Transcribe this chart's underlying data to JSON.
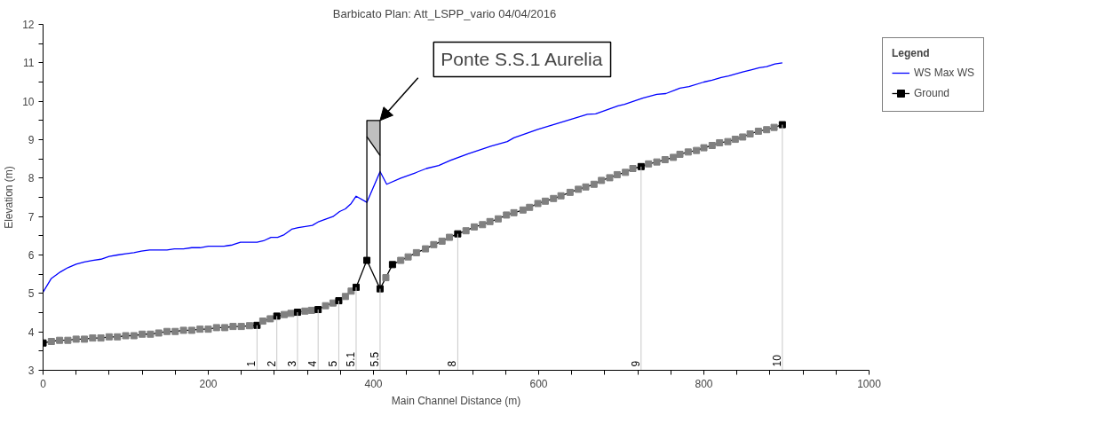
{
  "chart_data": {
    "type": "line",
    "title": "Barbicato      Plan: Att_LSPP_vario   04/04/2016",
    "xlabel": "Main Channel Distance (m)",
    "ylabel": "Elevation (m)",
    "legend_title": "Legend",
    "legend": "right",
    "grid": false,
    "xlim": [
      0,
      1000
    ],
    "ylim": [
      3,
      12
    ],
    "xticks": [
      0,
      {
        "value": 40,
        "label": null
      },
      {
        "value": 80,
        "label": null
      },
      {
        "value": 120,
        "label": null
      },
      {
        "value": 160,
        "label": null
      },
      200,
      {
        "value": 240,
        "label": null
      },
      {
        "value": 280,
        "label": null
      },
      {
        "value": 320,
        "label": null
      },
      {
        "value": 360,
        "label": null
      },
      400,
      {
        "value": 440,
        "label": null
      },
      {
        "value": 480,
        "label": null
      },
      {
        "value": 520,
        "label": null
      },
      {
        "value": 560,
        "label": null
      },
      600,
      {
        "value": 640,
        "label": null
      },
      {
        "value": 680,
        "label": null
      },
      {
        "value": 720,
        "label": null
      },
      {
        "value": 760,
        "label": null
      },
      800,
      {
        "value": 840,
        "label": null
      },
      {
        "value": 880,
        "label": null
      },
      {
        "value": 920,
        "label": null
      },
      {
        "value": 960,
        "label": null
      },
      1000
    ],
    "yticks": [
      3,
      {
        "value": 3.5,
        "label": null
      },
      4,
      {
        "value": 4.5,
        "label": null
      },
      5,
      {
        "value": 5.5,
        "label": null
      },
      6,
      {
        "value": 6.5,
        "label": null
      },
      7,
      {
        "value": 7.5,
        "label": null
      },
      8,
      {
        "value": 8.5,
        "label": null
      },
      9,
      {
        "value": 9.5,
        "label": null
      },
      10,
      {
        "value": 10.5,
        "label": null
      },
      11,
      {
        "value": 11.5,
        "label": null
      },
      12
    ],
    "series": [
      {
        "name": "WS Max WS",
        "color": "#0000ff",
        "marker": "none",
        "x": [
          0,
          10,
          21,
          30,
          40,
          50,
          60,
          70,
          80,
          90,
          100,
          110,
          119,
          129,
          150,
          159,
          170,
          180,
          190,
          200,
          219,
          229,
          239,
          259,
          267,
          276,
          284,
          292,
          301,
          309,
          326,
          334,
          342,
          351,
          359,
          366,
          373,
          379,
          392,
          408,
          416,
          433,
          451,
          464,
          479,
          493,
          514,
          542,
          562,
          570,
          599,
          630,
          659,
          669,
          696,
          704,
          726,
          743,
          754,
          771,
          782,
          800,
          810,
          821,
          830,
          847,
          858,
          867,
          876,
          886,
          895
        ],
        "values": [
          5.03,
          5.39,
          5.56,
          5.67,
          5.76,
          5.82,
          5.86,
          5.89,
          5.96,
          6.0,
          6.03,
          6.06,
          6.1,
          6.13,
          6.13,
          6.16,
          6.16,
          6.19,
          6.19,
          6.23,
          6.23,
          6.26,
          6.33,
          6.33,
          6.37,
          6.46,
          6.46,
          6.53,
          6.67,
          6.71,
          6.77,
          6.87,
          6.93,
          7.0,
          7.13,
          7.2,
          7.34,
          7.53,
          7.37,
          8.17,
          7.84,
          8.0,
          8.14,
          8.25,
          8.33,
          8.46,
          8.63,
          8.83,
          8.95,
          9.05,
          9.27,
          9.47,
          9.66,
          9.67,
          9.88,
          9.92,
          10.08,
          10.18,
          10.2,
          10.34,
          10.38,
          10.5,
          10.55,
          10.62,
          10.66,
          10.76,
          10.82,
          10.87,
          10.9,
          10.97,
          11.0
        ]
      },
      {
        "name": "Ground",
        "color": "#000000",
        "marker": "square",
        "x": [
          0,
          10,
          20,
          30,
          40,
          50,
          60,
          70,
          80,
          90,
          100,
          110,
          120,
          130,
          140,
          150,
          160,
          170,
          180,
          190,
          200,
          210,
          220,
          230,
          240,
          250,
          259,
          266,
          275,
          283,
          292,
          300,
          308,
          317,
          325,
          333,
          342,
          351,
          358,
          366,
          373,
          379,
          392,
          408,
          415,
          423,
          433,
          442,
          452,
          463,
          473,
          483,
          492,
          502,
          512,
          522,
          532,
          541,
          551,
          561,
          570,
          581,
          589,
          599,
          608,
          618,
          627,
          638,
          648,
          657,
          667,
          676,
          686,
          695,
          705,
          714,
          724,
          733,
          743,
          753,
          763,
          771,
          781,
          791,
          800,
          810,
          819,
          829,
          838,
          847,
          856,
          866,
          876,
          885,
          895
        ],
        "values": [
          3.71,
          3.75,
          3.78,
          3.78,
          3.81,
          3.81,
          3.84,
          3.84,
          3.87,
          3.87,
          3.9,
          3.9,
          3.94,
          3.94,
          3.97,
          4.01,
          4.01,
          4.04,
          4.04,
          4.07,
          4.07,
          4.11,
          4.11,
          4.14,
          4.14,
          4.16,
          4.17,
          4.28,
          4.34,
          4.41,
          4.45,
          4.48,
          4.51,
          4.54,
          4.56,
          4.58,
          4.68,
          4.75,
          4.81,
          4.92,
          5.06,
          5.16,
          5.86,
          5.12,
          5.41,
          5.75,
          5.86,
          5.95,
          6.06,
          6.16,
          6.27,
          6.36,
          6.46,
          6.55,
          6.63,
          6.73,
          6.79,
          6.87,
          6.94,
          7.04,
          7.1,
          7.17,
          7.24,
          7.34,
          7.4,
          7.47,
          7.54,
          7.63,
          7.71,
          7.77,
          7.84,
          7.94,
          8.01,
          8.09,
          8.15,
          8.25,
          8.3,
          8.37,
          8.42,
          8.48,
          8.54,
          8.62,
          8.68,
          8.72,
          8.79,
          8.85,
          8.92,
          8.95,
          9.01,
          9.07,
          9.15,
          9.22,
          9.26,
          9.32,
          9.39
        ],
        "colors": [
          "#000000",
          "#808080",
          "#808080",
          "#808080",
          "#808080",
          "#808080",
          "#808080",
          "#808080",
          "#808080",
          "#808080",
          "#808080",
          "#808080",
          "#808080",
          "#808080",
          "#808080",
          "#808080",
          "#808080",
          "#808080",
          "#808080",
          "#808080",
          "#808080",
          "#808080",
          "#808080",
          "#808080",
          "#808080",
          "#808080",
          "#000000",
          "#808080",
          "#808080",
          "#000000",
          "#808080",
          "#808080",
          "#000000",
          "#808080",
          "#808080",
          "#000000",
          "#808080",
          "#808080",
          "#000000",
          "#808080",
          "#808080",
          "#000000",
          "#000000",
          "#000000",
          "#808080",
          "#000000",
          "#808080",
          "#808080",
          "#808080",
          "#808080",
          "#808080",
          "#808080",
          "#808080",
          "#000000",
          "#808080",
          "#808080",
          "#808080",
          "#808080",
          "#808080",
          "#808080",
          "#808080",
          "#808080",
          "#808080",
          "#808080",
          "#808080",
          "#808080",
          "#808080",
          "#808080",
          "#808080",
          "#808080",
          "#808080",
          "#808080",
          "#808080",
          "#808080",
          "#808080",
          "#808080",
          "#000000",
          "#808080",
          "#808080",
          "#808080",
          "#808080",
          "#808080",
          "#808080",
          "#808080",
          "#808080",
          "#808080",
          "#808080",
          "#808080",
          "#808080",
          "#808080",
          "#808080",
          "#808080",
          "#808080",
          "#808080",
          "#000000"
        ]
      },
      {
        "color": "#000000",
        "marker": "none",
        "x": [
          392,
          392,
          408,
          408
        ],
        "values": [
          5.86,
          9.5,
          9.5,
          5.12
        ]
      },
      {
        "color": "#000000",
        "marker": "none",
        "x": [
          392,
          408
        ],
        "values": [
          9.08,
          8.59
        ],
        "lower": [
          9.08,
          8.59
        ],
        "upper": [
          9.5,
          9.5
        ]
      }
    ],
    "annotations": [
      {
        "text": "Ponte S.S.1 Aurelia",
        "x": 408,
        "y": 9.5
      },
      {
        "text": "1",
        "x": 259,
        "y": 4.17
      },
      {
        "text": "2",
        "x": 283,
        "y": 4.41
      },
      {
        "text": "3",
        "x": 308,
        "y": 4.51
      },
      {
        "text": "4",
        "x": 333,
        "y": 4.58
      },
      {
        "text": "5",
        "x": 358,
        "y": 4.81
      },
      {
        "text": "5.1",
        "x": 379,
        "y": 5.16
      },
      {
        "text": "5.5",
        "x": 408,
        "y": 5.12
      },
      {
        "text": "8",
        "x": 502,
        "y": 6.55
      },
      {
        "text": "9",
        "x": 724,
        "y": 8.3
      },
      {
        "text": "10",
        "x": 895,
        "y": 9.39
      }
    ]
  }
}
